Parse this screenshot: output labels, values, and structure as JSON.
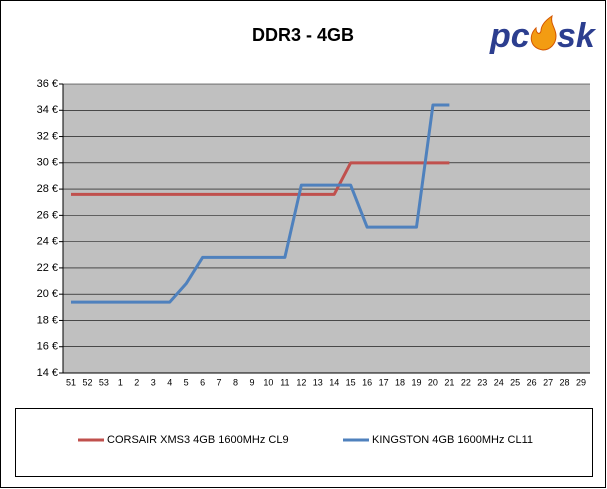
{
  "logo": [
    "pc",
    "sk"
  ],
  "chart_data": {
    "type": "line",
    "title": "DDR3 - 4GB",
    "categories": [
      "51",
      "52",
      "53",
      "1",
      "2",
      "3",
      "4",
      "5",
      "6",
      "7",
      "8",
      "9",
      "10",
      "11",
      "12",
      "13",
      "14",
      "15",
      "16",
      "17",
      "18",
      "19",
      "20",
      "21",
      "22",
      "23",
      "24",
      "25",
      "26",
      "27",
      "28",
      "29"
    ],
    "series": [
      {
        "name": "CORSAIR XMS3 4GB 1600MHz CL9",
        "color": "#c0504d",
        "values": [
          27.6,
          27.6,
          27.6,
          27.6,
          27.6,
          27.6,
          27.6,
          27.6,
          27.6,
          27.6,
          27.6,
          27.6,
          27.6,
          27.6,
          27.6,
          27.6,
          27.6,
          30,
          30,
          30,
          30,
          30,
          30,
          30,
          null,
          null,
          null,
          null,
          null,
          null,
          null,
          null
        ]
      },
      {
        "name": "KINGSTON 4GB 1600MHz CL11",
        "color": "#4f81bd",
        "values": [
          19.4,
          19.4,
          19.4,
          19.4,
          19.4,
          19.4,
          19.4,
          20.8,
          22.8,
          22.8,
          22.8,
          22.8,
          22.8,
          22.8,
          28.3,
          28.3,
          28.3,
          28.3,
          25.1,
          25.1,
          25.1,
          25.1,
          34.4,
          34.4,
          null,
          null,
          null,
          null,
          null,
          null,
          null,
          null
        ]
      }
    ],
    "ylim": [
      14,
      36
    ],
    "yticks": [
      {
        "value": 14,
        "label": "14 €"
      },
      {
        "value": 16,
        "label": "16 €"
      },
      {
        "value": 18,
        "label": "18 €"
      },
      {
        "value": 20,
        "label": "20 €"
      },
      {
        "value": 22,
        "label": "22 €"
      },
      {
        "value": 24,
        "label": "24 €"
      },
      {
        "value": 26,
        "label": "26 €"
      },
      {
        "value": 28,
        "label": "28 €"
      },
      {
        "value": 30,
        "label": "30 €"
      },
      {
        "value": 32,
        "label": "32 €"
      },
      {
        "value": 34,
        "label": "34 €"
      },
      {
        "value": 36,
        "label": "36 €"
      }
    ],
    "grid": true,
    "legend": "bottom"
  }
}
